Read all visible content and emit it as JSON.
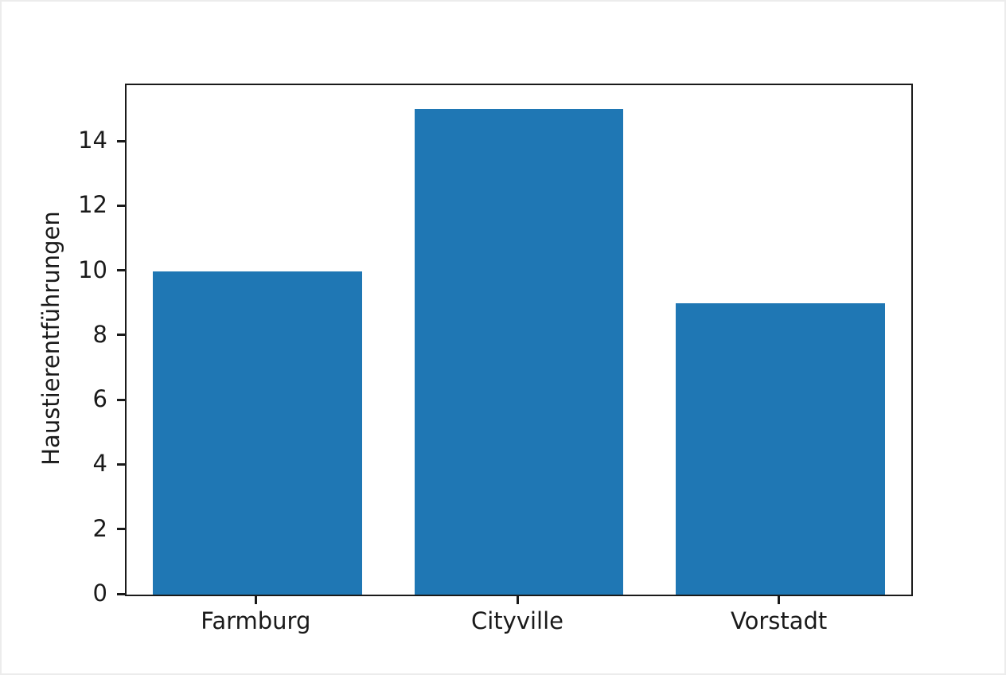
{
  "chart_data": {
    "type": "bar",
    "title": "",
    "categories": [
      "Farmburg",
      "Cityville",
      "Vorstadt"
    ],
    "values": [
      10,
      15,
      9
    ],
    "xlabel": "",
    "ylabel": "Haustierentführungen",
    "ylim": [
      0,
      15.75
    ],
    "yticks": [
      0,
      2,
      4,
      6,
      8,
      10,
      12,
      14
    ],
    "ytick_labels": [
      "0",
      "2",
      "4",
      "6",
      "8",
      "10",
      "12",
      "14"
    ],
    "bar_width_fraction": 0.8,
    "bar_color": "#1f77b4",
    "axis_color": "#1a1a1a",
    "background_color": "#ffffff",
    "grid": false,
    "legend": false
  }
}
